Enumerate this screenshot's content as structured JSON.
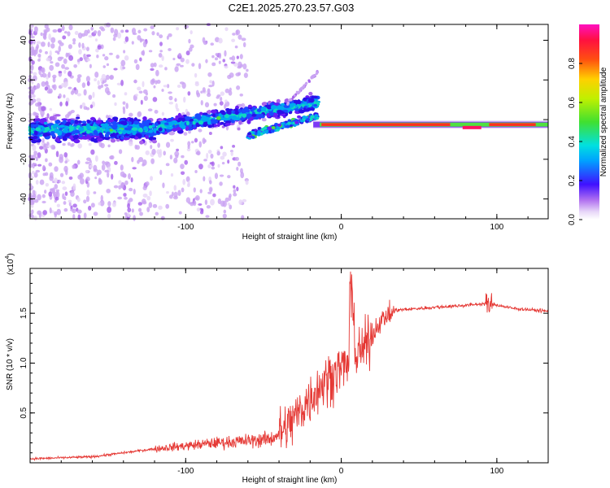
{
  "title": "C2E1.2025.270.23.57.G03",
  "chart_data": [
    {
      "type": "heatmap",
      "name": "spectrogram",
      "xlabel": "Height of straight line (km)",
      "ylabel": "Frequency (Hz)",
      "xlim": [
        -200,
        133
      ],
      "ylim": [
        -50,
        48
      ],
      "xticks": [
        -100,
        0,
        100
      ],
      "yticks": [
        -40,
        -20,
        0,
        20,
        40
      ],
      "colorbar": {
        "label": "Normalized spectral amplitude",
        "range": [
          0,
          1
        ],
        "ticks": [
          "0.0",
          "0.2",
          "0.4",
          "0.6",
          "0.8"
        ]
      },
      "tone": {
        "description": "dominant line",
        "segments": [
          {
            "x": [
              -200,
              -120
            ],
            "freq": [
              -5,
              -4
            ]
          },
          {
            "x": [
              -120,
              -60
            ],
            "freq": [
              -4,
              3
            ]
          },
          {
            "x": [
              -60,
              -20
            ],
            "freq": [
              3,
              8
            ]
          },
          {
            "x": [
              -60,
              -20
            ],
            "freq": [
              -8,
              2
            ]
          },
          {
            "x": [
              -20,
              133
            ],
            "freq": [
              -2,
              -3
            ]
          }
        ]
      }
    },
    {
      "type": "line",
      "name": "snr",
      "xlabel": "Height of straight line (km)",
      "ylabel": "SNR (10 * v/v)",
      "y_multiplier": "(x10",
      "y_multiplier_exp": "4",
      "y_multiplier_close": ")",
      "xlim": [
        -200,
        133
      ],
      "ylim": [
        0,
        1.95
      ],
      "xticks": [
        -100,
        0,
        100
      ],
      "yticks": [
        0.5,
        1.0,
        1.5
      ],
      "ytick_labels": [
        "0.5",
        "1.0",
        "1.5"
      ],
      "color": "#e53935",
      "profile": [
        [
          -200,
          0.04
        ],
        [
          -160,
          0.06
        ],
        [
          -140,
          0.1
        ],
        [
          -120,
          0.14
        ],
        [
          -100,
          0.17
        ],
        [
          -80,
          0.2
        ],
        [
          -60,
          0.22
        ],
        [
          -45,
          0.24
        ],
        [
          -35,
          0.35
        ],
        [
          -25,
          0.55
        ],
        [
          -15,
          0.75
        ],
        [
          -5,
          0.9
        ],
        [
          5,
          1.0
        ],
        [
          15,
          1.15
        ],
        [
          25,
          1.42
        ],
        [
          35,
          1.53
        ],
        [
          60,
          1.56
        ],
        [
          80,
          1.58
        ],
        [
          95,
          1.6
        ],
        [
          110,
          1.55
        ],
        [
          133,
          1.52
        ]
      ],
      "spike": {
        "x": 7,
        "y": 1.95
      }
    }
  ]
}
